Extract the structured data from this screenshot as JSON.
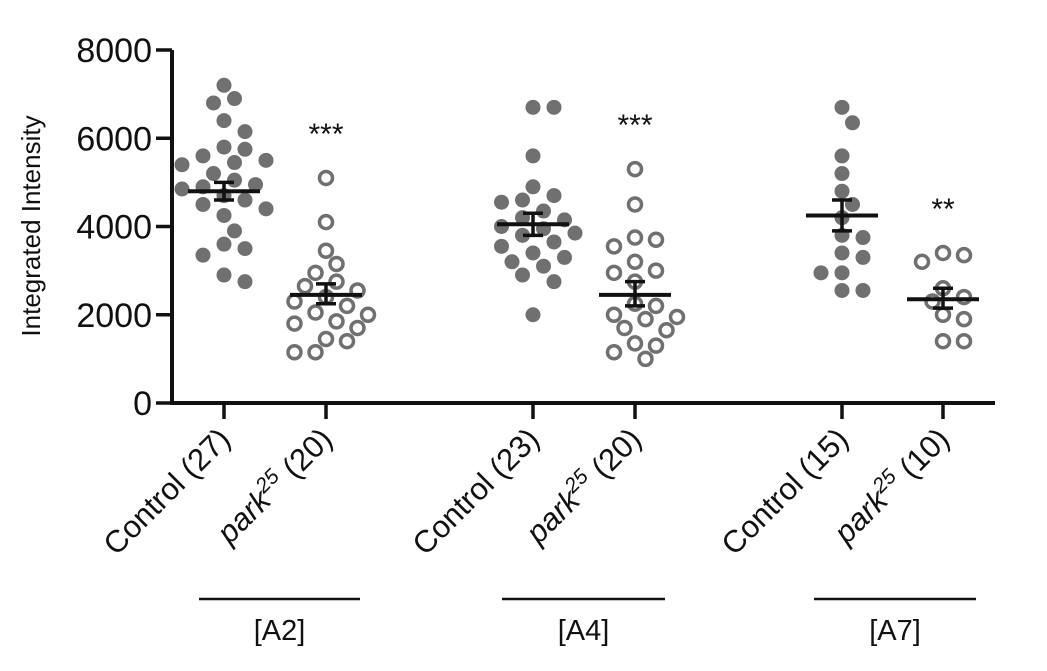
{
  "chart_data": {
    "type": "scatter",
    "subtype": "dot-plot-with-mean-sem",
    "ylabel": "Integrated Intensity",
    "ylim": [
      0,
      8000
    ],
    "yticks": [
      "0",
      "2000",
      "4000",
      "6000",
      "8000"
    ],
    "groups": [
      {
        "name": "[A2]",
        "categories": [
          {
            "label": "Control (27)",
            "label_main": "Control",
            "label_sup": "",
            "label_tail": " (27)",
            "marker": "filled",
            "color": "#707070",
            "mean": 4800,
            "sem_low": 4600,
            "sem_high": 5000,
            "significance": "",
            "values": [
              7200,
              6900,
              6800,
              6400,
              6150,
              5800,
              5750,
              5600,
              5500,
              5450,
              5400,
              5200,
              5050,
              4950,
              4900,
              4850,
              4700,
              4600,
              4500,
              4400,
              4250,
              3900,
              3600,
              3500,
              3350,
              2900,
              2750
            ]
          },
          {
            "label": "park25 (20)",
            "label_main": "park",
            "label_sup": "25",
            "label_tail": " (20)",
            "marker": "open",
            "color": "#707070",
            "mean": 2450,
            "sem_low": 2250,
            "sem_high": 2700,
            "significance": "***",
            "values": [
              5100,
              4100,
              3450,
              3150,
              2950,
              2750,
              2650,
              2550,
              2400,
              2300,
              2200,
              2050,
              2000,
              1850,
              1800,
              1700,
              1450,
              1400,
              1150,
              1150
            ]
          }
        ]
      },
      {
        "name": "[A4]",
        "categories": [
          {
            "label": "Control (23)",
            "label_main": "Control",
            "label_sup": "",
            "label_tail": " (23)",
            "marker": "filled",
            "color": "#707070",
            "mean": 4050,
            "sem_low": 3800,
            "sem_high": 4300,
            "significance": "",
            "values": [
              6700,
              6700,
              5600,
              4900,
              4700,
              4600,
              4550,
              4350,
              4200,
              4150,
              4000,
              3950,
              3850,
              3800,
              3650,
              3550,
              3400,
              3300,
              3200,
              3100,
              2900,
              2750,
              2000
            ]
          },
          {
            "label": "park25 (20)",
            "label_main": "park",
            "label_sup": "25",
            "label_tail": " (20)",
            "marker": "open",
            "color": "#707070",
            "mean": 2450,
            "sem_low": 2200,
            "sem_high": 2750,
            "significance": "***",
            "values": [
              5300,
              4500,
              3750,
              3700,
              3550,
              3200,
              3000,
              2950,
              2750,
              2250,
              2200,
              2000,
              1950,
              1900,
              1700,
              1650,
              1350,
              1300,
              1150,
              1000
            ]
          }
        ]
      },
      {
        "name": "[A7]",
        "categories": [
          {
            "label": "Control (15)",
            "label_main": "Control",
            "label_sup": "",
            "label_tail": " (15)",
            "marker": "filled",
            "color": "#707070",
            "mean": 4250,
            "sem_low": 3900,
            "sem_high": 4600,
            "significance": "",
            "values": [
              6700,
              6350,
              5600,
              5200,
              4800,
              4500,
              4200,
              3800,
              3750,
              3400,
              3300,
              2950,
              2950,
              2550,
              2550
            ]
          },
          {
            "label": "park25 (10)",
            "label_main": "park",
            "label_sup": "25",
            "label_tail": " (10)",
            "marker": "open",
            "color": "#707070",
            "mean": 2350,
            "sem_low": 2150,
            "sem_high": 2600,
            "significance": "**",
            "values": [
              3400,
              3350,
              3200,
              2600,
              2400,
              2300,
              2000,
              1900,
              1400,
              1400
            ]
          }
        ]
      }
    ]
  }
}
